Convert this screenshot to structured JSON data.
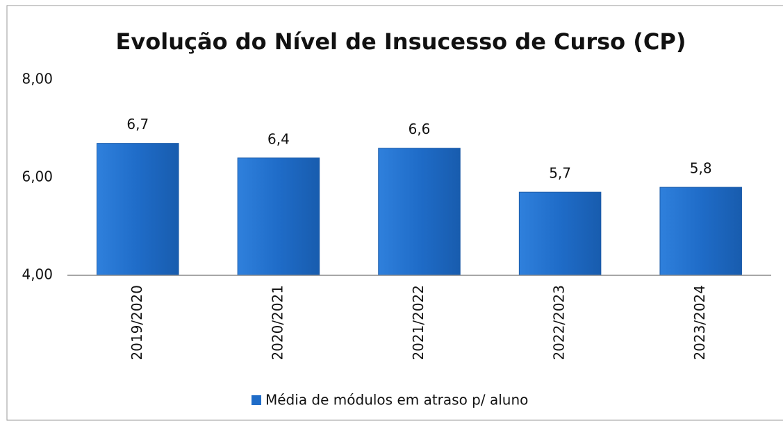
{
  "chart_data": {
    "type": "bar",
    "title": "Evolução do Nível de Insucesso de Curso (CP)",
    "categories": [
      "2019/2020",
      "2020/2021",
      "2021/2022",
      "2022/2023",
      "2023/2024"
    ],
    "series": [
      {
        "name": "Média de módulos em atraso p/ aluno",
        "color": "#1f6cc8",
        "values": [
          6.7,
          6.4,
          6.6,
          5.7,
          5.8
        ],
        "value_labels": [
          "6,7",
          "6,4",
          "6,6",
          "5,7",
          "5,8"
        ]
      }
    ],
    "ylim": [
      4,
      8
    ],
    "yticks": [
      {
        "value": 4,
        "label": "4,00"
      },
      {
        "value": 6,
        "label": "6,00"
      },
      {
        "value": 8,
        "label": "8,00"
      }
    ],
    "grid": false,
    "legend": "bottom"
  }
}
